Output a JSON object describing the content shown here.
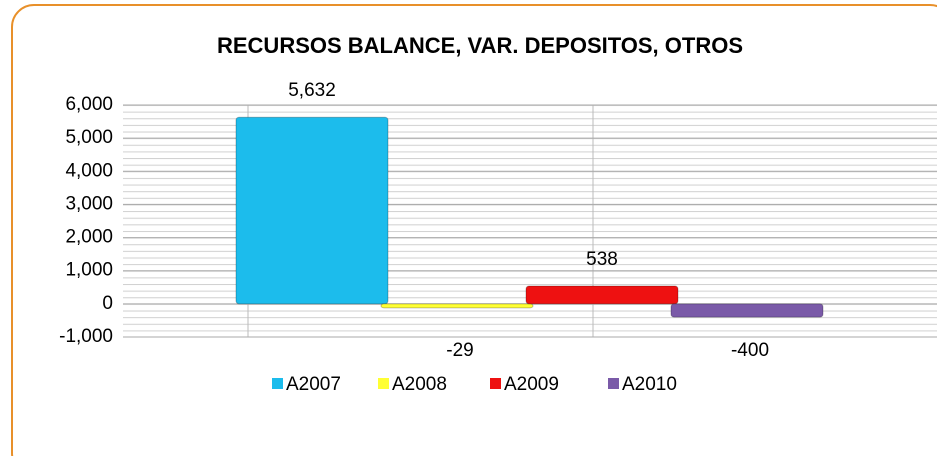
{
  "chart_data": {
    "type": "bar",
    "title": "RECURSOS BALANCE, VAR. DEPOSITOS, OTROS",
    "categories": [
      null
    ],
    "series": [
      {
        "name": "A2007",
        "color": "#1cbcec",
        "values": [
          5632
        ],
        "value_labels": [
          "5,632"
        ]
      },
      {
        "name": "A2008",
        "color": "#ffff33",
        "values": [
          -29
        ],
        "value_labels": [
          "-29"
        ]
      },
      {
        "name": "A2009",
        "color": "#ee1111",
        "values": [
          538
        ],
        "value_labels": [
          "538"
        ]
      },
      {
        "name": "A2010",
        "color": "#7a5aa8",
        "values": [
          -400
        ],
        "value_labels": [
          "-400"
        ]
      }
    ],
    "ylim": [
      -1000,
      6000
    ],
    "yticks": [
      {
        "value": -1000,
        "label": "-1,000"
      },
      0,
      {
        "value": 1000,
        "label": "1,000"
      },
      {
        "value": 2000,
        "label": "2,000"
      },
      {
        "value": 3000,
        "label": "3,000"
      },
      {
        "value": 4000,
        "label": "4,000"
      },
      {
        "value": 5000,
        "label": "5,000"
      },
      {
        "value": 6000,
        "label": "6,000"
      }
    ],
    "grid": true,
    "legend": "bottom"
  }
}
